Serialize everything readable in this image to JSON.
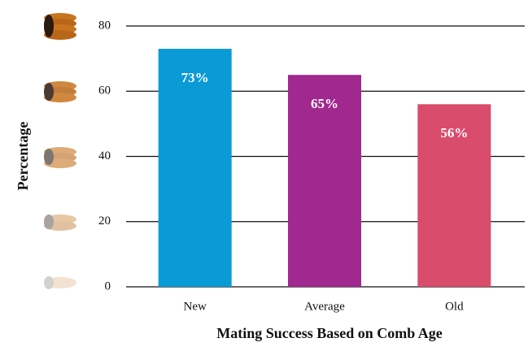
{
  "chart_data": {
    "type": "bar",
    "x_label": "Mating Success Based on Comb Age",
    "y_label": "Percentage",
    "categories": [
      "New",
      "Average",
      "Old"
    ],
    "values": [
      73,
      65,
      56
    ],
    "value_labels": [
      "73%",
      "65%",
      "56%"
    ],
    "colors": [
      "#0a9ad6",
      "#a0288f",
      "#d94c6c"
    ],
    "ylim": [
      0,
      80
    ],
    "yticks": [
      0,
      20,
      40,
      60,
      80
    ],
    "grid": true
  }
}
